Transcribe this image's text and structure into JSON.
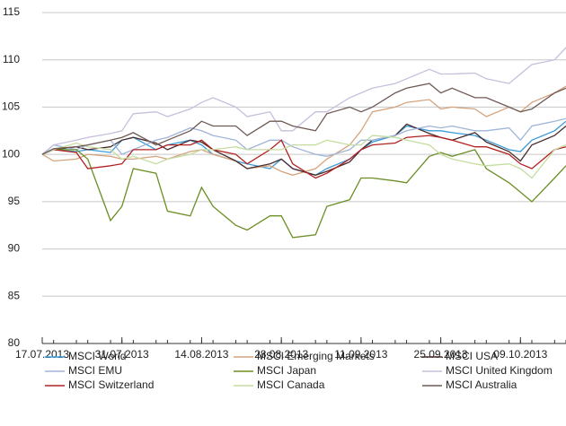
{
  "chart_data": {
    "type": "line",
    "x": [
      "17.07.2013",
      "19.07.2013",
      "23.07.2013",
      "25.07.2013",
      "29.07.2013",
      "31.07.2013",
      "02.08.2013",
      "06.08.2013",
      "08.08.2013",
      "12.08.2013",
      "14.08.2013",
      "16.08.2013",
      "20.08.2013",
      "22.08.2013",
      "26.08.2013",
      "28.08.2013",
      "30.08.2013",
      "03.09.2013",
      "05.09.2013",
      "09.09.2013",
      "11.09.2013",
      "13.09.2013",
      "17.09.2013",
      "19.09.2013",
      "23.09.2013",
      "25.09.2013",
      "27.09.2013",
      "01.10.2013",
      "03.10.2013",
      "07.10.2013",
      "09.10.2013",
      "11.10.2013",
      "15.10.2013",
      "17.10.2013"
    ],
    "xlim": [
      "17.07.2013",
      "17.10.2013"
    ],
    "xticks": [
      "17.07.2013",
      "31.07.2013",
      "14.08.2013",
      "28.08.2013",
      "11.09.2013",
      "25.09.2013",
      "09.10.2013"
    ],
    "ylim": [
      80,
      115
    ],
    "yticks": [
      80,
      85,
      90,
      95,
      100,
      105,
      110,
      115
    ],
    "grid": true,
    "series": [
      {
        "name": "MSCI World",
        "color": "#3a9ad9",
        "values": [
          100,
          100.5,
          100.3,
          100.5,
          100.2,
          101.5,
          101.8,
          100.5,
          101,
          101.5,
          101,
          100,
          99.3,
          99,
          98.5,
          99.5,
          98.5,
          97.8,
          98.5,
          99.5,
          100.5,
          101.3,
          102,
          103,
          102.5,
          102.5,
          102.3,
          102,
          101.5,
          100.5,
          100.3,
          101.5,
          102.5,
          103.5
        ]
      },
      {
        "name": "MSCI Emerging Markets",
        "color": "#d4a47e",
        "values": [
          100,
          99.3,
          99.5,
          100,
          99.8,
          99.5,
          99.5,
          99.8,
          99.5,
          100.3,
          100.5,
          100,
          99.3,
          98.5,
          98.8,
          98.2,
          97.8,
          98.5,
          99.5,
          101,
          102.5,
          104.5,
          105,
          105.5,
          105.8,
          104.8,
          105,
          104.8,
          104,
          105,
          104.5,
          105.5,
          106.5,
          107.2
        ]
      },
      {
        "name": "MSCI USA",
        "color": "#4a2c2c",
        "values": [
          100,
          100.5,
          100.8,
          100.5,
          100.8,
          101.5,
          101.8,
          101.2,
          100.5,
          101.5,
          101.3,
          100.5,
          99.3,
          98.5,
          99,
          99.5,
          98.5,
          97.8,
          98.2,
          99.2,
          100.5,
          101.5,
          102,
          103.2,
          102.2,
          101.8,
          101.5,
          102.3,
          101.3,
          100.3,
          99.3,
          101,
          102,
          103
        ]
      },
      {
        "name": "MSCI EMU",
        "color": "#9fb4d8",
        "values": [
          100,
          101,
          100.5,
          101,
          101.5,
          100,
          100.5,
          101.5,
          101.8,
          102.8,
          102.5,
          102,
          101.5,
          100.5,
          101.5,
          101.5,
          100.8,
          100,
          99.8,
          100.5,
          101.5,
          101.5,
          102,
          102.5,
          103,
          102.8,
          103,
          102.5,
          102.5,
          102.8,
          101.5,
          103,
          103.5,
          103.8
        ]
      },
      {
        "name": "MSCI Japan",
        "color": "#6b8e23",
        "values": [
          100,
          100.5,
          100.5,
          99.5,
          93,
          94.5,
          98.5,
          98,
          94,
          93.5,
          96.5,
          94.5,
          92.5,
          92,
          93.5,
          93.5,
          91.2,
          91.5,
          94.5,
          95.2,
          97.5,
          97.5,
          97.2,
          97,
          99.8,
          100.2,
          99.8,
          100.5,
          98.5,
          97,
          96,
          95,
          97.5,
          98.8
        ]
      },
      {
        "name": "MSCI United Kingdom",
        "color": "#c6bfdc",
        "values": [
          100,
          101,
          101.5,
          101.8,
          102.2,
          102.5,
          104.3,
          104.5,
          104,
          104.8,
          105.5,
          106,
          105,
          104,
          104.5,
          102.5,
          102.5,
          104.5,
          104.5,
          106,
          106.5,
          107,
          107.5,
          108,
          109,
          108.5,
          108.5,
          108.6,
          108,
          107.5,
          108.5,
          109.5,
          110,
          111.3
        ]
      },
      {
        "name": "MSCI Switzerland",
        "color": "#b22222",
        "values": [
          100,
          100.5,
          100.2,
          98.5,
          98.8,
          99,
          100.5,
          100.5,
          101,
          101,
          101.5,
          100.5,
          100,
          99,
          100.5,
          101.5,
          99,
          97.5,
          98,
          99.5,
          100.5,
          101,
          101.2,
          101.8,
          102,
          101.8,
          101.5,
          100.8,
          100.8,
          100,
          99,
          98.5,
          100.5,
          100.8
        ]
      },
      {
        "name": "MSCI Canada",
        "color": "#c5dca0",
        "values": [
          100,
          100.5,
          101.2,
          100.8,
          100.5,
          99.5,
          99.8,
          99,
          99.5,
          100,
          100.5,
          100.5,
          100.8,
          100.5,
          100.5,
          100.5,
          101,
          101,
          101.5,
          101,
          101,
          102,
          101.8,
          101.5,
          101,
          100,
          99.5,
          99,
          98.8,
          99,
          98.5,
          97.5,
          100.5,
          101
        ]
      },
      {
        "name": "MSCI Australia",
        "color": "#6e5a55",
        "values": [
          100,
          100.6,
          100.8,
          101,
          101.5,
          101.8,
          102.3,
          101,
          101.5,
          102.5,
          103.5,
          103,
          103,
          102,
          103.5,
          103.5,
          103,
          102.5,
          104.3,
          105,
          104.5,
          105,
          106.5,
          107,
          107.5,
          106.5,
          107,
          106,
          106,
          105,
          104.5,
          104.8,
          106.5,
          107
        ]
      }
    ]
  }
}
